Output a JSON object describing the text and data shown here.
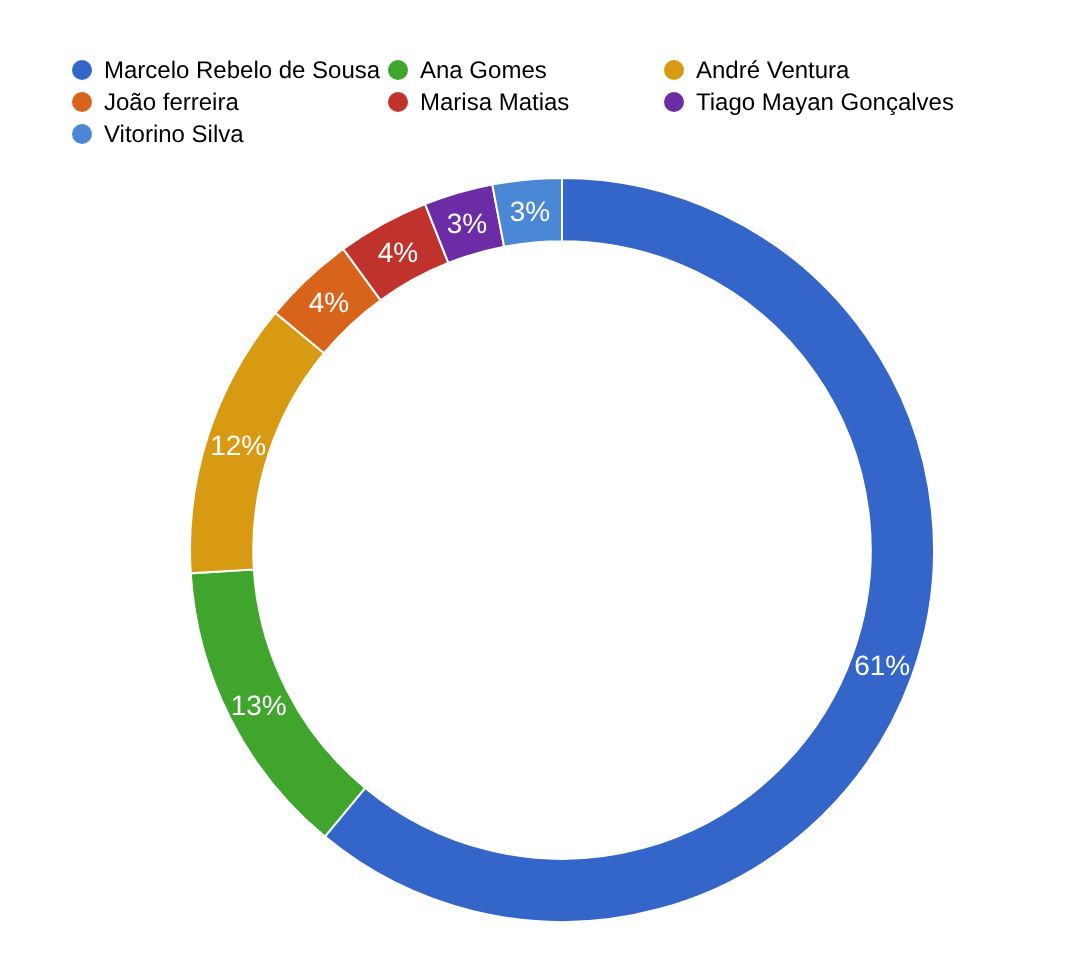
{
  "chart_data": {
    "type": "donut",
    "categories": [
      "Marcelo Rebelo de Sousa",
      "Ana Gomes",
      "André Ventura",
      "João ferreira",
      "Marisa Matias",
      "Tiago Mayan Gonçalves",
      "Vitorino Silva"
    ],
    "values": [
      61,
      13,
      12,
      4,
      4,
      3,
      3
    ],
    "colors": [
      "#3466c9",
      "#3fa52d",
      "#d79a12",
      "#d8641b",
      "#c0322c",
      "#6b2ca5",
      "#4a88d6"
    ],
    "value_labels": [
      "61%",
      "13%",
      "12%",
      "4%",
      "4%",
      "3%",
      "3%"
    ],
    "legend": "top"
  }
}
